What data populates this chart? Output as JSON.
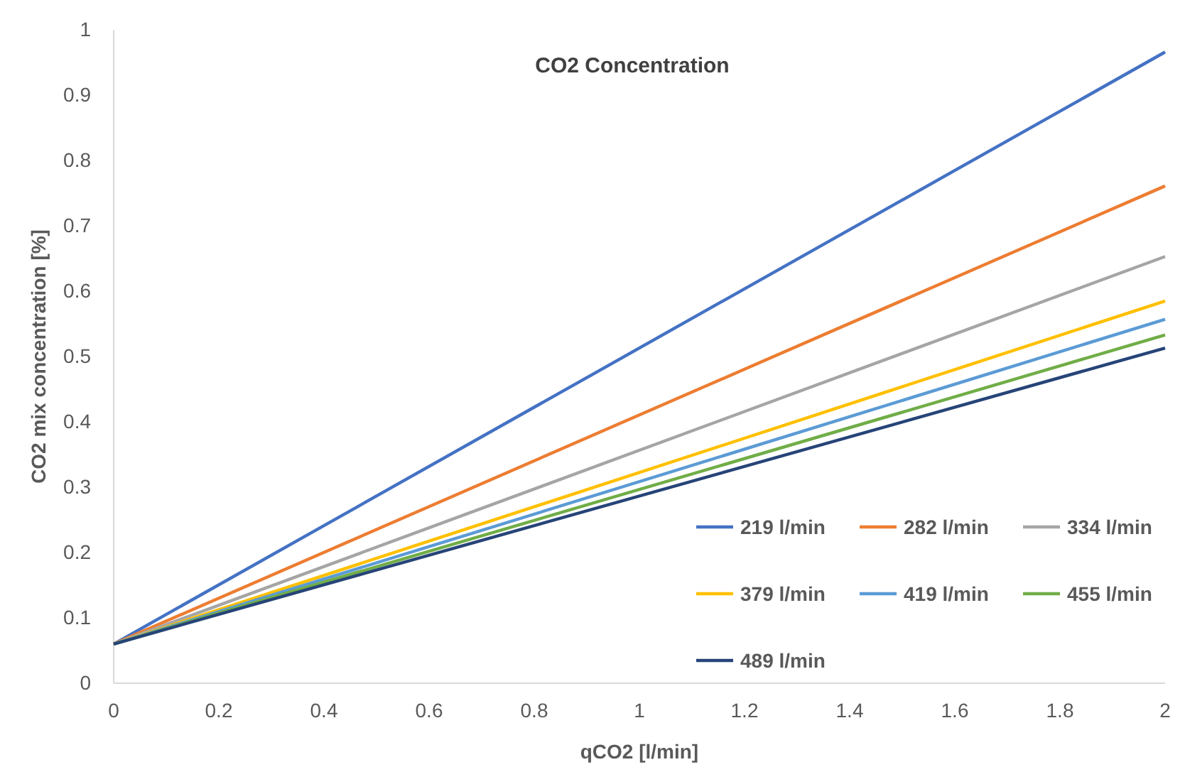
{
  "chart_data": {
    "type": "line",
    "title": "CO2 Concentration",
    "xlabel": "qCO2 [l/min]",
    "ylabel": "CO2 mix concentration [%]",
    "x": [
      0,
      2
    ],
    "series": [
      {
        "name": "219 l/min",
        "color": "#4472c4",
        "values": [
          0.06,
          0.966
        ]
      },
      {
        "name": "282 l/min",
        "color": "#ed7d31",
        "values": [
          0.06,
          0.761
        ]
      },
      {
        "name": "334 l/min",
        "color": "#a5a5a5",
        "values": [
          0.06,
          0.653
        ]
      },
      {
        "name": "379 l/min",
        "color": "#ffc000",
        "values": [
          0.06,
          0.585
        ]
      },
      {
        "name": "419 l/min",
        "color": "#5b9bd5",
        "values": [
          0.06,
          0.557
        ]
      },
      {
        "name": "455 l/min",
        "color": "#70ad47",
        "values": [
          0.06,
          0.533
        ]
      },
      {
        "name": "489 l/min",
        "color": "#264478",
        "values": [
          0.06,
          0.513
        ]
      }
    ],
    "xlim": [
      0,
      2
    ],
    "xticks": [
      0,
      0.2,
      0.4,
      0.6,
      0.8,
      1,
      1.2,
      1.4,
      1.6,
      1.8,
      2
    ],
    "ylim": [
      0,
      1
    ],
    "yticks": [
      0,
      0.1,
      0.2,
      0.3,
      0.4,
      0.5,
      0.6,
      0.7,
      0.8,
      0.9,
      1
    ],
    "grid": false,
    "legend": "bottom right",
    "marker": "none",
    "line_style": "solid"
  }
}
